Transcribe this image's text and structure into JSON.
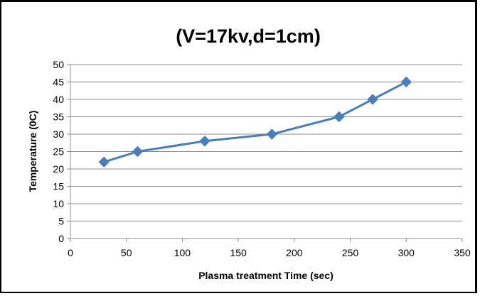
{
  "chart_data": {
    "type": "line",
    "title": "(V=17kv,d=1cm)",
    "xlabel": "Plasma treatment Time (sec)",
    "ylabel": "Temperature (0C)",
    "xlim": [
      0,
      350
    ],
    "ylim": [
      0,
      50
    ],
    "x_ticks": [
      0,
      50,
      100,
      150,
      200,
      250,
      300,
      350
    ],
    "y_ticks": [
      0,
      5,
      10,
      15,
      20,
      25,
      30,
      35,
      40,
      45,
      50
    ],
    "grid": true,
    "legend": "none",
    "series": [
      {
        "x": [
          30,
          60,
          120,
          180,
          240,
          270,
          300
        ],
        "y": [
          22,
          25,
          28,
          30,
          35,
          40,
          45
        ],
        "color": "#4A7EBB",
        "marker": "diamond"
      }
    ]
  }
}
